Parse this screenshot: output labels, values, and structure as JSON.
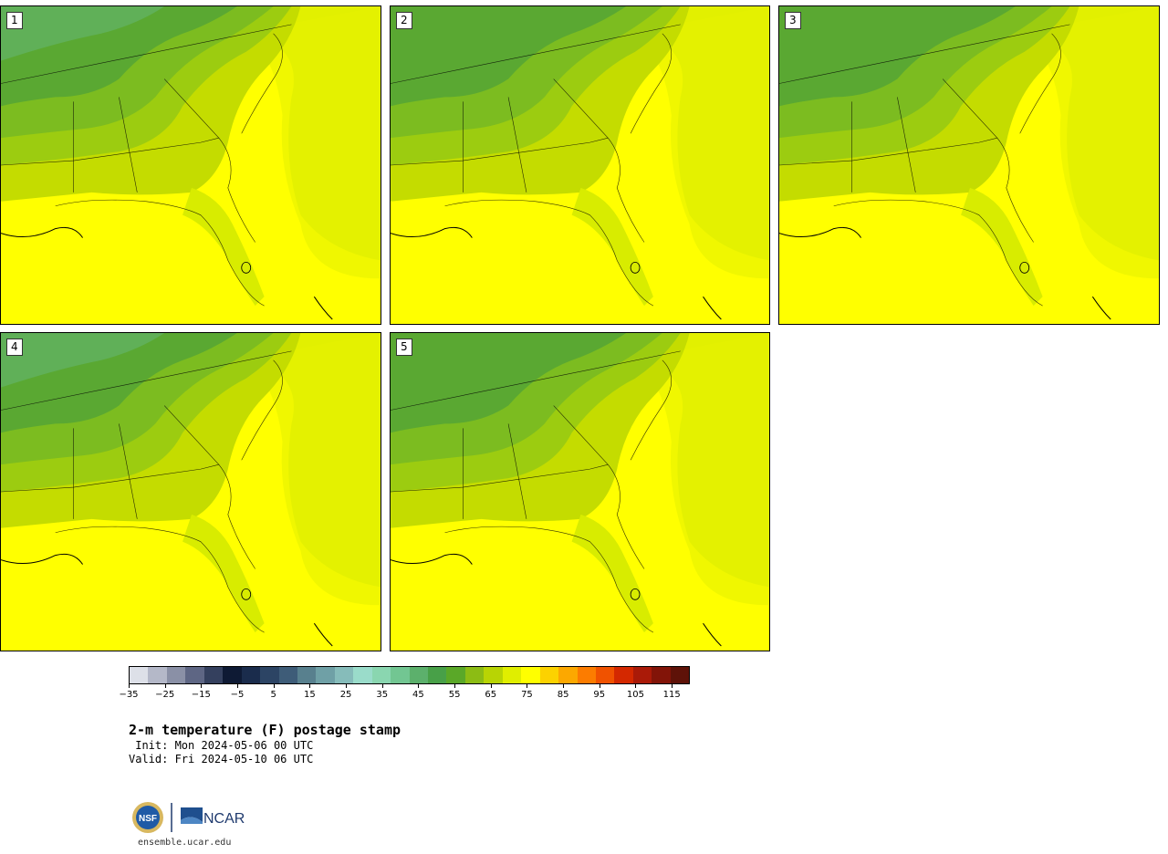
{
  "panels": [
    {
      "label": "1"
    },
    {
      "label": "2"
    },
    {
      "label": "3"
    },
    {
      "label": "4"
    },
    {
      "label": "5"
    }
  ],
  "colorbar": {
    "colors": [
      "#dde0e8",
      "#b4b8c8",
      "#8a90a6",
      "#5e6684",
      "#34405e",
      "#0e1a34",
      "#1a2c4c",
      "#2c4464",
      "#3e5c78",
      "#58808e",
      "#6fa0a6",
      "#86bcba",
      "#9adcca",
      "#8ad6b0",
      "#72c692",
      "#5cb06c",
      "#48a048",
      "#5aa828",
      "#8cbc14",
      "#b8d404",
      "#e0ee00",
      "#ffff00",
      "#fcd200",
      "#fca800",
      "#fc7c00",
      "#f05200",
      "#d42800",
      "#aa1a08",
      "#821408",
      "#5e1208"
    ],
    "tick_labels": [
      "−35",
      "−25",
      "−15",
      "−5",
      "5",
      "15",
      "25",
      "35",
      "45",
      "55",
      "65",
      "75",
      "85",
      "95",
      "105",
      "115"
    ],
    "min": -35,
    "max": 120
  },
  "title": "2-m temperature (F) postage stamp",
  "init": " Init: Mon 2024-05-06 00 UTC",
  "valid": "Valid: Fri 2024-05-10 06 UTC",
  "logos": {
    "nsf_text": "NSF",
    "ncar_text": "NCAR"
  },
  "url": "ensemble.ucar.edu"
}
